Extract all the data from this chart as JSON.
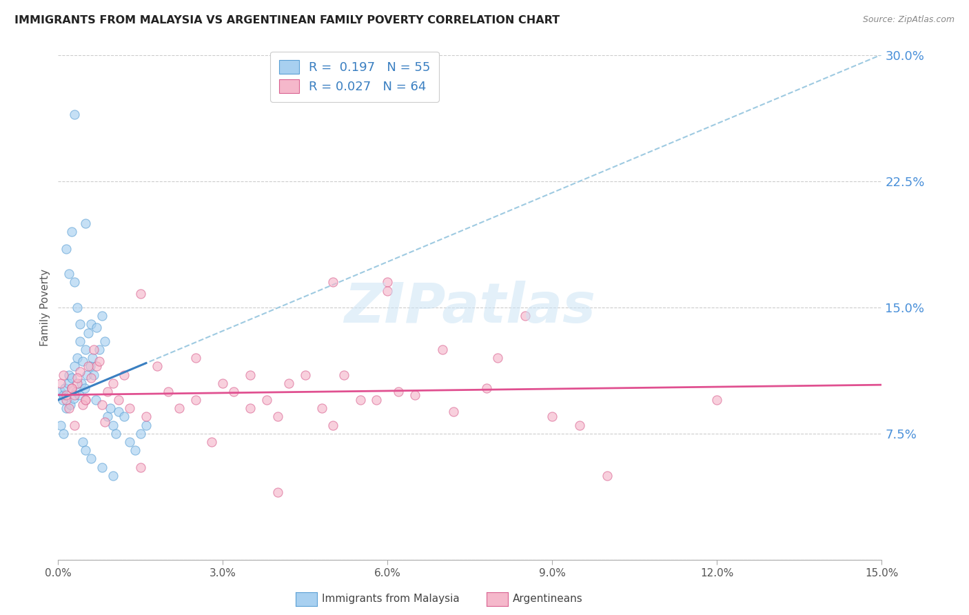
{
  "title": "IMMIGRANTS FROM MALAYSIA VS ARGENTINEAN FAMILY POVERTY CORRELATION CHART",
  "source": "Source: ZipAtlas.com",
  "ylabel": "Family Poverty",
  "x_ticks_pct": [
    0.0,
    3.0,
    6.0,
    9.0,
    12.0,
    15.0
  ],
  "y_ticks_pct": [
    0.0,
    7.5,
    15.0,
    22.5,
    30.0
  ],
  "xlim": [
    0.0,
    15.0
  ],
  "ylim": [
    0.0,
    30.0
  ],
  "legend_blue_r": "R =  0.197",
  "legend_blue_n": "N = 55",
  "legend_pink_r": "R = 0.027",
  "legend_pink_n": "N = 64",
  "legend_label_blue": "Immigrants from Malaysia",
  "legend_label_pink": "Argentineans",
  "blue_color": "#a8d0f0",
  "blue_edge_color": "#5a9fd4",
  "pink_color": "#f5b8cb",
  "pink_edge_color": "#d96090",
  "blue_line_color": "#3a7fc1",
  "pink_line_color": "#e05090",
  "dashed_line_color": "#9ecae1",
  "watermark": "ZIPatlas",
  "blue_scatter_x": [
    0.05,
    0.08,
    0.1,
    0.12,
    0.15,
    0.18,
    0.2,
    0.22,
    0.25,
    0.28,
    0.3,
    0.32,
    0.35,
    0.38,
    0.4,
    0.42,
    0.45,
    0.48,
    0.5,
    0.52,
    0.55,
    0.58,
    0.6,
    0.62,
    0.65,
    0.68,
    0.7,
    0.75,
    0.8,
    0.85,
    0.9,
    0.95,
    1.0,
    1.05,
    1.1,
    1.2,
    1.3,
    1.4,
    1.5,
    1.6,
    0.05,
    0.1,
    0.15,
    0.2,
    0.25,
    0.3,
    0.35,
    0.4,
    0.45,
    0.5,
    0.6,
    0.8,
    1.0,
    0.3,
    0.5
  ],
  "blue_scatter_y": [
    10.0,
    9.5,
    9.8,
    10.2,
    9.0,
    10.5,
    11.0,
    9.2,
    10.8,
    9.6,
    11.5,
    10.0,
    12.0,
    9.8,
    13.0,
    10.5,
    11.8,
    10.2,
    12.5,
    11.0,
    13.5,
    11.5,
    14.0,
    12.0,
    11.0,
    9.5,
    13.8,
    12.5,
    14.5,
    13.0,
    8.5,
    9.0,
    8.0,
    7.5,
    8.8,
    8.5,
    7.0,
    6.5,
    7.5,
    8.0,
    8.0,
    7.5,
    18.5,
    17.0,
    19.5,
    16.5,
    15.0,
    14.0,
    7.0,
    6.5,
    6.0,
    5.5,
    5.0,
    26.5,
    20.0
  ],
  "pink_scatter_x": [
    0.05,
    0.1,
    0.15,
    0.2,
    0.25,
    0.3,
    0.35,
    0.4,
    0.5,
    0.6,
    0.7,
    0.8,
    0.9,
    1.0,
    1.2,
    1.5,
    1.8,
    2.0,
    2.5,
    3.0,
    3.5,
    4.0,
    4.5,
    5.0,
    5.5,
    6.0,
    6.5,
    7.0,
    8.0,
    9.0,
    10.0,
    12.0,
    0.15,
    0.25,
    0.35,
    0.45,
    0.55,
    0.65,
    0.75,
    0.85,
    1.1,
    1.3,
    1.6,
    2.2,
    2.8,
    3.2,
    3.8,
    4.2,
    4.8,
    5.2,
    5.8,
    6.2,
    7.2,
    7.8,
    8.5,
    9.5,
    2.5,
    3.5,
    5.0,
    6.0,
    0.3,
    0.5,
    1.5,
    4.0
  ],
  "pink_scatter_y": [
    10.5,
    11.0,
    9.5,
    9.0,
    10.2,
    9.8,
    10.5,
    11.2,
    9.5,
    10.8,
    11.5,
    9.2,
    10.0,
    10.5,
    11.0,
    15.8,
    11.5,
    10.0,
    9.5,
    10.5,
    9.0,
    8.5,
    11.0,
    8.0,
    9.5,
    16.5,
    9.8,
    12.5,
    12.0,
    8.5,
    5.0,
    9.5,
    9.8,
    10.2,
    10.8,
    9.2,
    11.5,
    12.5,
    11.8,
    8.2,
    9.5,
    9.0,
    8.5,
    9.0,
    7.0,
    10.0,
    9.5,
    10.5,
    9.0,
    11.0,
    9.5,
    10.0,
    8.8,
    10.2,
    14.5,
    8.0,
    12.0,
    11.0,
    16.5,
    16.0,
    8.0,
    9.5,
    5.5,
    4.0
  ]
}
